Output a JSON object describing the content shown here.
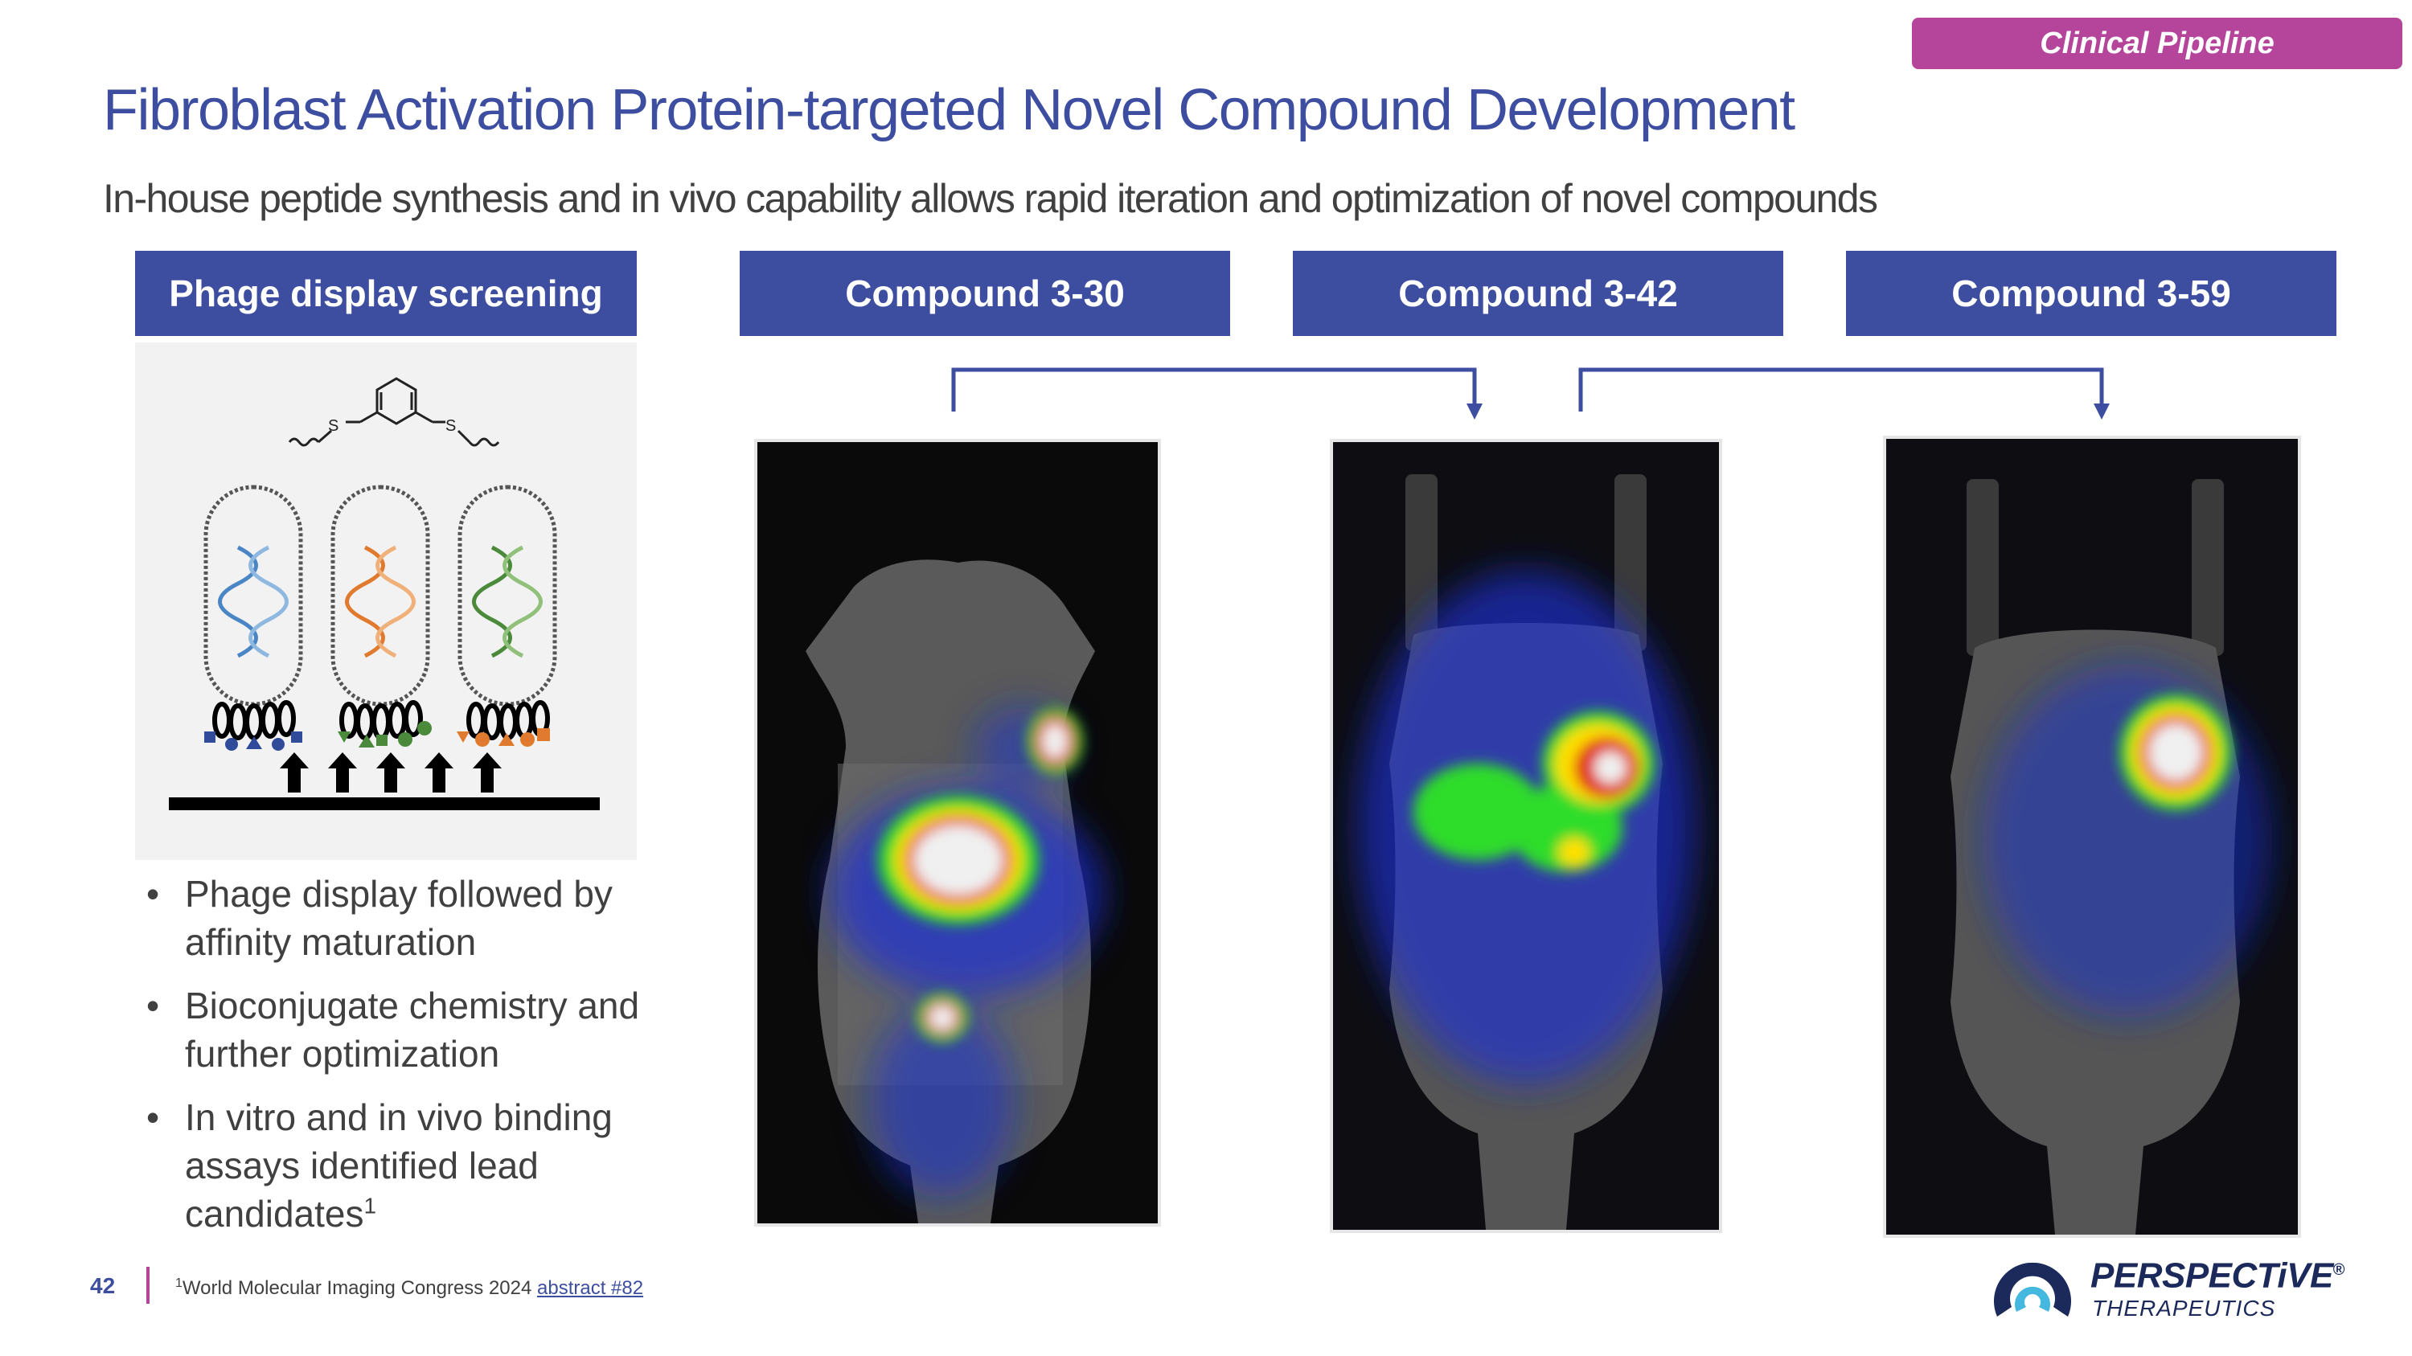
{
  "badge": "Clinical Pipeline",
  "title": "Fibroblast Activation Protein-targeted Novel Compound Development",
  "subtitle": "In-house peptide synthesis and in vivo capability allows rapid iteration and optimization of novel compounds",
  "columns": [
    {
      "header": "Phage display screening"
    },
    {
      "header": "Compound 3-30"
    },
    {
      "header": "Compound 3-42"
    },
    {
      "header": "Compound 3-59"
    }
  ],
  "molecule_labels": {
    "s1": "S",
    "s2": "S"
  },
  "bullets": [
    {
      "text": "Phage display followed by affinity maturation"
    },
    {
      "text": "Bioconjugate chemistry and further optimization"
    },
    {
      "text": "In vitro and in vivo binding assays identified lead candidates",
      "sup": "1"
    }
  ],
  "footer": {
    "page_number": "42",
    "footnote_sup": "1",
    "footnote_text": "World Molecular Imaging Congress 2024 ",
    "footnote_link": "abstract #82"
  },
  "logo": {
    "name": "PERSPECTiVE",
    "reg": "®",
    "subtitle": "THERAPEUTICS"
  },
  "colors": {
    "accent_blue": "#3d4ea0",
    "accent_magenta": "#b5449b",
    "text_gray": "#404040",
    "logo_navy": "#1b2a5a",
    "logo_cyan": "#45b8e0"
  }
}
